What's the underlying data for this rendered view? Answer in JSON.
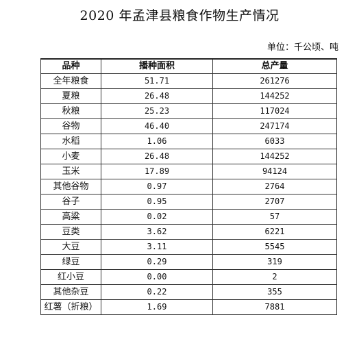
{
  "title": "2020 年孟津县粮食作物生产情况",
  "unit": "单位：千公顷、吨",
  "table": {
    "headers": [
      "品种",
      "播种面积",
      "总产量"
    ],
    "rows": [
      [
        "全年粮食",
        "51.71",
        "261276"
      ],
      [
        "夏粮",
        "26.48",
        "144252"
      ],
      [
        "秋粮",
        "25.23",
        "117024"
      ],
      [
        "谷物",
        "46.40",
        "247174"
      ],
      [
        "水稻",
        "1.06",
        "6033"
      ],
      [
        "小麦",
        "26.48",
        "144252"
      ],
      [
        "玉米",
        "17.89",
        "94124"
      ],
      [
        "其他谷物",
        "0.97",
        "2764"
      ],
      [
        "谷子",
        "0.95",
        "2707"
      ],
      [
        "高粱",
        "0.02",
        "57"
      ],
      [
        "豆类",
        "3.62",
        "6221"
      ],
      [
        "大豆",
        "3.11",
        "5545"
      ],
      [
        "绿豆",
        "0.29",
        "319"
      ],
      [
        "红小豆",
        "0.00",
        "2"
      ],
      [
        "其他杂豆",
        "0.22",
        "355"
      ],
      [
        "红薯（折粮）",
        "1.69",
        "7881"
      ]
    ]
  }
}
